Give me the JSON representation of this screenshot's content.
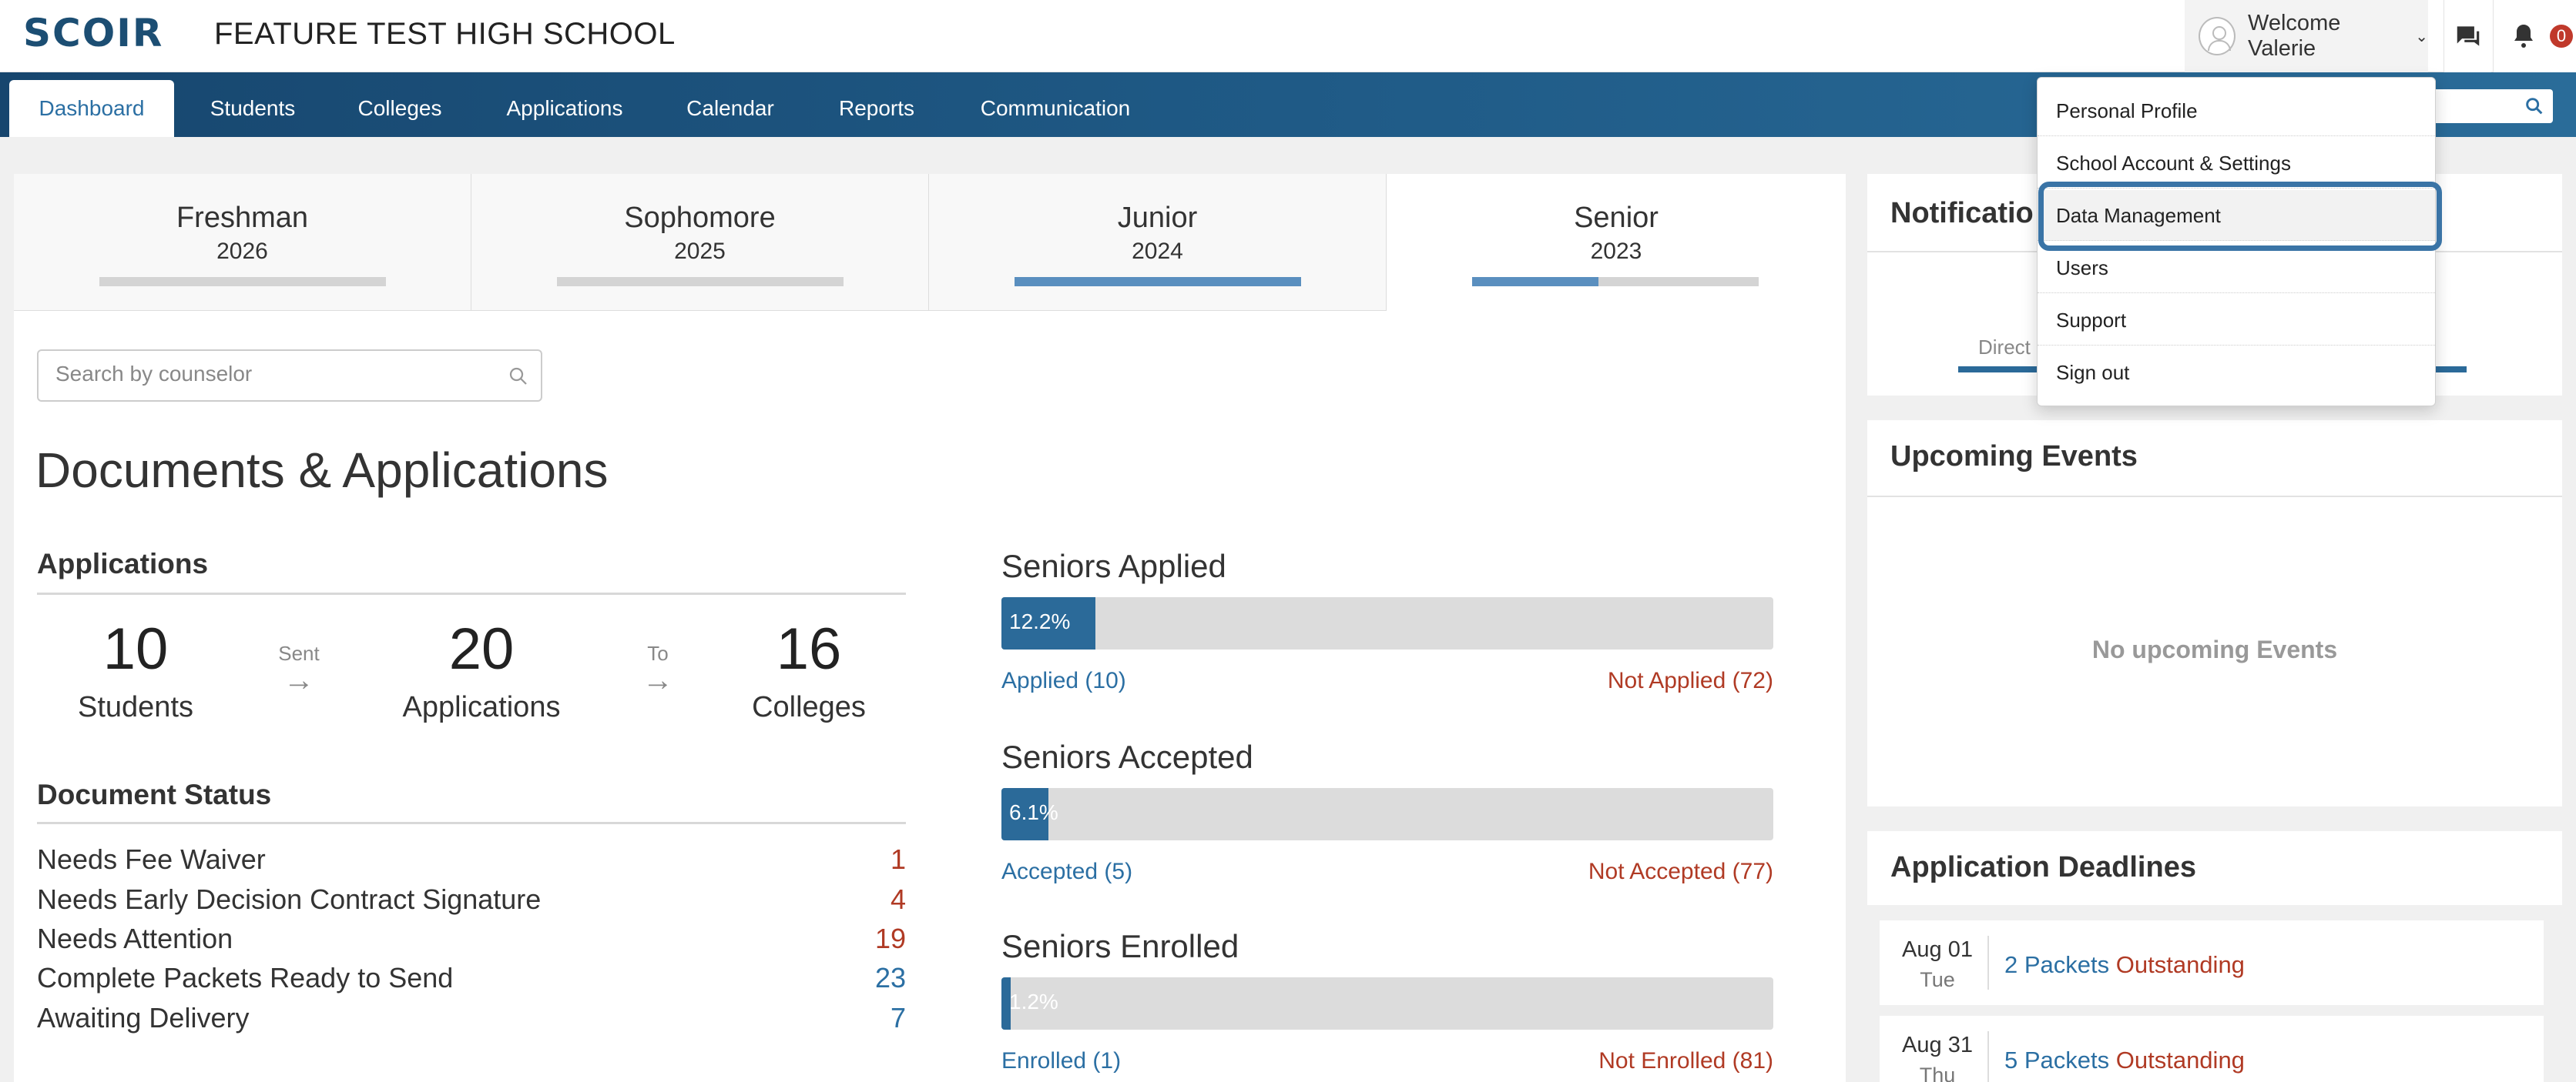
{
  "header": {
    "logo": "SCOIR",
    "school_name": "FEATURE TEST HIGH SCHOOL",
    "welcome": "Welcome Valerie",
    "notification_count": "0"
  },
  "nav": {
    "tabs": [
      "Dashboard",
      "Students",
      "Colleges",
      "Applications",
      "Calendar",
      "Reports",
      "Communication"
    ],
    "active": "Dashboard"
  },
  "class_tabs": [
    {
      "name": "Freshman",
      "year": "2026",
      "progress": 0.0
    },
    {
      "name": "Sophomore",
      "year": "2025",
      "progress": 0.0
    },
    {
      "name": "Junior",
      "year": "2024",
      "progress": 1.0
    },
    {
      "name": "Senior",
      "year": "2023",
      "progress": 0.44
    }
  ],
  "search": {
    "placeholder": "Search by counselor"
  },
  "section_title": "Documents & Applications",
  "applications": {
    "heading": "Applications",
    "students_count": "10",
    "students_label": "Students",
    "sent_label": "Sent",
    "applications_count": "20",
    "applications_label": "Applications",
    "to_label": "To",
    "colleges_count": "16",
    "colleges_label": "Colleges",
    "arrow": "→"
  },
  "document_status": {
    "heading": "Document Status",
    "rows": [
      {
        "label": "Needs Fee Waiver",
        "value": "1",
        "color": "#b03a24"
      },
      {
        "label": "Needs Early Decision Contract Signature",
        "value": "4",
        "color": "#b03a24"
      },
      {
        "label": "Needs Attention",
        "value": "19",
        "color": "#b03a24"
      },
      {
        "label": "Complete Packets Ready to Send",
        "value": "23",
        "color": "#2b6fa3"
      },
      {
        "label": "Awaiting Delivery",
        "value": "7",
        "color": "#2b6fa3"
      }
    ]
  },
  "seniors": [
    {
      "title": "Seniors Applied",
      "pct": "12.2%",
      "fraction": 0.122,
      "left": "Applied (10)",
      "right": "Not Applied (72)"
    },
    {
      "title": "Seniors Accepted",
      "pct": "6.1%",
      "fraction": 0.061,
      "left": "Accepted (5)",
      "right": "Not Accepted (77)"
    },
    {
      "title": "Seniors Enrolled",
      "pct": "1.2%",
      "fraction": 0.012,
      "left": "Enrolled (1)",
      "right": "Not Enrolled (81)"
    }
  ],
  "notifications": {
    "heading": "Notificatio",
    "partial_label": "Direct"
  },
  "upcoming_events": {
    "heading": "Upcoming Events",
    "empty": "No upcoming Events"
  },
  "application_deadlines": {
    "heading": "Application Deadlines",
    "rows": [
      {
        "date": "Aug 01",
        "day": "Tue",
        "packets": "2 Packets",
        "status": "Outstanding"
      },
      {
        "date": "Aug 31",
        "day": "Thu",
        "packets": "5 Packets",
        "status": "Outstanding"
      }
    ]
  },
  "user_menu": {
    "items": [
      "Personal Profile",
      "School Account & Settings",
      "Data Management",
      "Users",
      "Support",
      "Sign out"
    ],
    "highlighted": "Data Management"
  },
  "colors": {
    "brand": "#1c4e73",
    "accent": "#2b6fa3",
    "alert": "#b03a24"
  }
}
